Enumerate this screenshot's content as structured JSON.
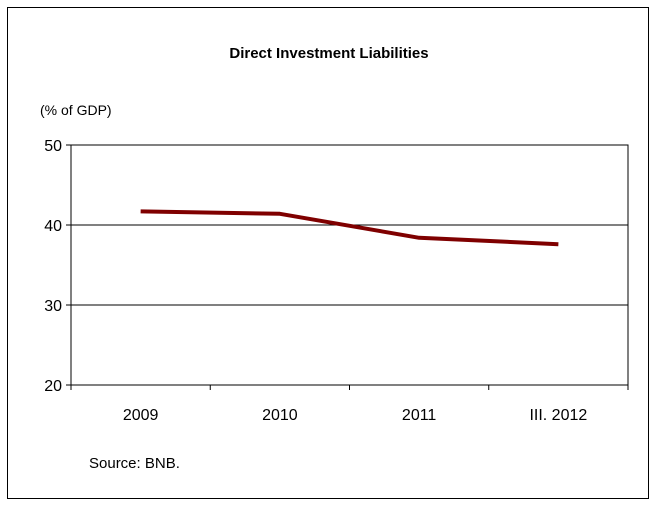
{
  "chart_data": {
    "type": "line",
    "title": "Direct Investment Liabilities",
    "ylabel": "(% of GDP)",
    "xlabel": "",
    "categories": [
      "2009",
      "2010",
      "2011",
      "III. 2012"
    ],
    "series": [
      {
        "values": [
          41.7,
          41.4,
          38.4,
          37.6
        ],
        "color": "#7f0000"
      }
    ],
    "ylim": [
      20,
      50
    ],
    "yticks": [
      20,
      30,
      40,
      50
    ],
    "grid": true,
    "plot_border": true,
    "legend": "none"
  },
  "source_note": "Source: BNB."
}
